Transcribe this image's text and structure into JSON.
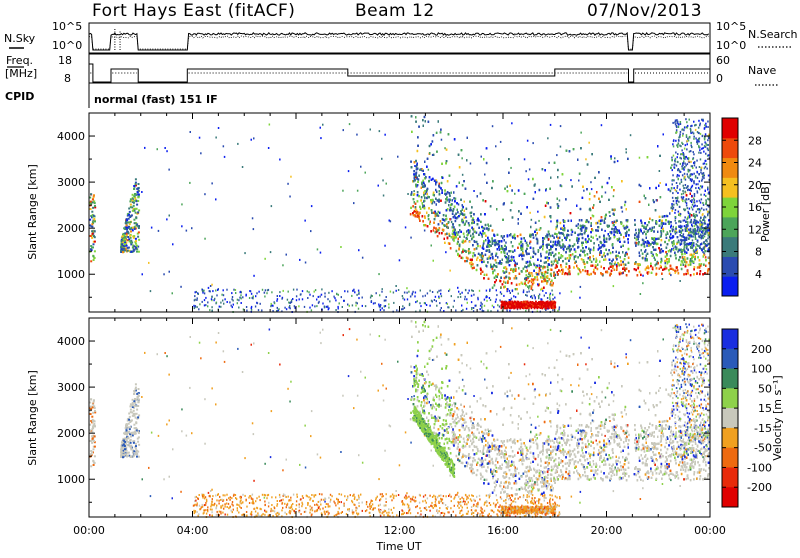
{
  "header": {
    "station": "Fort Hays East (fitACF)",
    "beam": "Beam 12",
    "date": "07/Nov/2013"
  },
  "strip_panels": {
    "nsky_label": "N.Sky",
    "nsky_ticks": [
      "10^5",
      "10^0"
    ],
    "nsearch_label": "N.Search",
    "nsearch_ticks": [
      "10^5",
      "10^0"
    ],
    "freq_label_top": "Freq.",
    "freq_label_bottom": "[MHz]",
    "freq_ticks": [
      "18",
      "8"
    ],
    "nave_label": "Nave",
    "nave_ticks": [
      "60",
      "0"
    ],
    "cpid_label": "CPID",
    "cpid_text": "normal (fast) 151 IF"
  },
  "chart_data": [
    {
      "type": "heatmap",
      "name": "power",
      "ylabel": "Slant Range [km]",
      "xlabel": "Time UT",
      "x_ticks": [
        "00:00",
        "04:00",
        "08:00",
        "12:00",
        "16:00",
        "20:00",
        "00:00"
      ],
      "y_ticks": [
        1000,
        2000,
        3000,
        4000
      ],
      "xlim_hours": [
        0,
        24
      ],
      "ylim_km": [
        180,
        4500
      ],
      "colorbar": {
        "label": "Power [dB]",
        "ticks": [
          4,
          8,
          12,
          16,
          20,
          24,
          28
        ],
        "range": [
          0,
          32
        ],
        "colors": [
          "#0a1ef0",
          "#2a4bb0",
          "#3a7a7a",
          "#4ca55a",
          "#7ed43a",
          "#f5c020",
          "#f08a10",
          "#ee4a0c",
          "#e00000"
        ]
      }
    },
    {
      "type": "heatmap",
      "name": "velocity",
      "ylabel": "Slant Range [km]",
      "xlabel": "Time UT",
      "x_ticks": [
        "00:00",
        "04:00",
        "08:00",
        "12:00",
        "16:00",
        "20:00",
        "00:00"
      ],
      "y_ticks": [
        1000,
        2000,
        3000,
        4000
      ],
      "xlim_hours": [
        0,
        24
      ],
      "ylim_km": [
        180,
        4500
      ],
      "colorbar": {
        "label": "Velocity [m s⁻¹]",
        "ticks": [
          200,
          100,
          50,
          15,
          -15,
          -50,
          -100,
          -200
        ],
        "colors": [
          "#1a2ee0",
          "#2a5ab8",
          "#3a8a5a",
          "#8ed14a",
          "#c8c8bc",
          "#f0a020",
          "#ee6a10",
          "#e82a0a",
          "#e00000"
        ]
      }
    }
  ]
}
